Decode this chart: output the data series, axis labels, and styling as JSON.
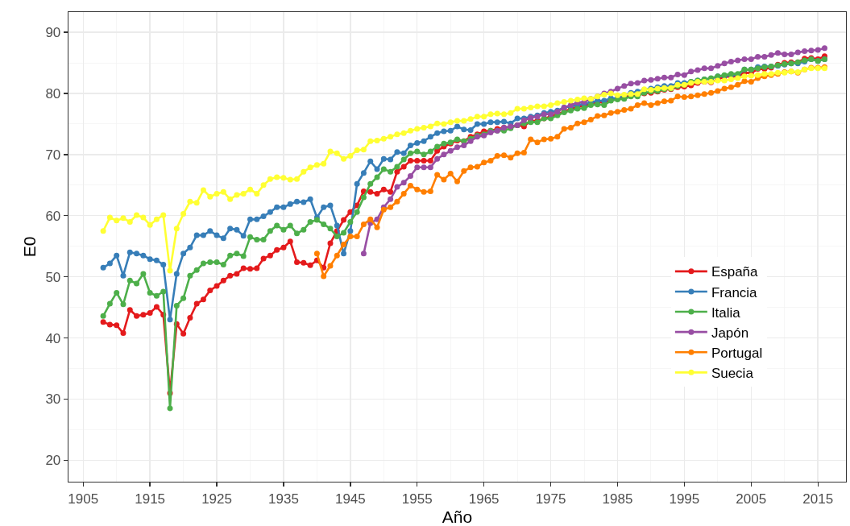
{
  "chart_data": {
    "type": "line",
    "xlabel": "Año",
    "ylabel": "E0",
    "grid": true,
    "legend": "right",
    "marker": "circle",
    "line_style": "solid",
    "xlim": [
      1902.8,
      2019.2
    ],
    "xticks": [
      1905,
      1915,
      1925,
      1935,
      1945,
      1955,
      1965,
      1975,
      1985,
      1995,
      2005,
      2015
    ],
    "ylim": [
      16.5,
      93.3
    ],
    "yticks": [
      20,
      30,
      40,
      50,
      60,
      70,
      80,
      90
    ],
    "x": [
      1908,
      1909,
      1910,
      1911,
      1912,
      1913,
      1914,
      1915,
      1916,
      1917,
      1918,
      1919,
      1920,
      1921,
      1922,
      1923,
      1924,
      1925,
      1926,
      1927,
      1928,
      1929,
      1930,
      1931,
      1932,
      1933,
      1934,
      1935,
      1936,
      1937,
      1938,
      1939,
      1940,
      1941,
      1942,
      1943,
      1944,
      1945,
      1946,
      1947,
      1948,
      1949,
      1950,
      1951,
      1952,
      1953,
      1954,
      1955,
      1956,
      1957,
      1958,
      1959,
      1960,
      1961,
      1962,
      1963,
      1964,
      1965,
      1966,
      1967,
      1968,
      1969,
      1970,
      1971,
      1972,
      1973,
      1974,
      1975,
      1976,
      1977,
      1978,
      1979,
      1980,
      1981,
      1982,
      1983,
      1984,
      1985,
      1986,
      1987,
      1988,
      1989,
      1990,
      1991,
      1992,
      1993,
      1994,
      1995,
      1996,
      1997,
      1998,
      1999,
      2000,
      2001,
      2002,
      2003,
      2004,
      2005,
      2006,
      2007,
      2008,
      2009,
      2010,
      2011,
      2012,
      2013,
      2014,
      2015,
      2016
    ],
    "series": [
      {
        "name": "España",
        "color": "#e41a1c",
        "values": [
          42.6,
          42.2,
          42.1,
          40.8,
          44.6,
          43.6,
          43.8,
          44.1,
          45.1,
          43.8,
          31.0,
          42.3,
          40.7,
          43.3,
          45.6,
          46.3,
          47.8,
          48.5,
          49.4,
          50.2,
          50.5,
          51.4,
          51.3,
          51.4,
          53.0,
          53.5,
          54.4,
          54.8,
          55.8,
          52.4,
          52.3,
          51.9,
          52.7,
          51.5,
          55.5,
          57.5,
          59.3,
          60.6,
          61.7,
          64.0,
          63.9,
          63.6,
          64.3,
          63.9,
          67.2,
          68.0,
          69.0,
          69.0,
          69.0,
          69.0,
          70.6,
          71.3,
          71.8,
          72.3,
          72.2,
          72.9,
          73.3,
          73.8,
          73.9,
          74.2,
          74.4,
          74.5,
          74.8,
          74.6,
          75.5,
          75.5,
          75.9,
          76.2,
          76.6,
          77.0,
          77.5,
          77.8,
          78.0,
          78.3,
          78.6,
          78.5,
          78.9,
          79.2,
          79.5,
          79.7,
          79.8,
          80.0,
          80.1,
          80.3,
          80.6,
          80.7,
          81.0,
          81.1,
          81.3,
          81.7,
          81.9,
          81.8,
          82.3,
          82.7,
          82.8,
          82.7,
          83.4,
          83.3,
          84.0,
          84.0,
          84.2,
          84.7,
          85.0,
          85.1,
          85.1,
          85.7,
          85.8,
          85.6,
          86.1
        ]
      },
      {
        "name": "Francia",
        "color": "#377eb8",
        "values": [
          51.5,
          52.2,
          53.5,
          50.2,
          54.0,
          53.8,
          53.5,
          52.9,
          52.7,
          52.0,
          43.0,
          50.5,
          53.8,
          54.8,
          56.8,
          56.8,
          57.5,
          56.8,
          56.3,
          57.9,
          57.7,
          56.7,
          59.4,
          59.4,
          59.9,
          60.6,
          61.4,
          61.4,
          61.9,
          62.3,
          62.2,
          62.7,
          59.7,
          61.4,
          61.7,
          58.4,
          53.8,
          57.5,
          65.2,
          67.0,
          68.9,
          67.6,
          69.3,
          69.2,
          70.4,
          70.2,
          71.5,
          71.9,
          72.2,
          72.9,
          73.5,
          73.8,
          73.9,
          74.6,
          74.1,
          74.0,
          75.0,
          75.0,
          75.3,
          75.3,
          75.4,
          75.1,
          75.9,
          75.9,
          76.2,
          76.4,
          76.8,
          77.0,
          77.2,
          77.7,
          77.9,
          78.1,
          78.3,
          78.5,
          78.8,
          78.8,
          79.2,
          79.2,
          79.7,
          80.1,
          80.3,
          80.6,
          80.8,
          81.0,
          81.2,
          81.2,
          81.7,
          81.7,
          81.9,
          82.1,
          82.3,
          82.4,
          82.8,
          82.9,
          83.0,
          83.0,
          83.9,
          83.9,
          84.3,
          84.4,
          84.4,
          84.5,
          84.7,
          84.9,
          84.9,
          85.2,
          85.6,
          85.3,
          85.6
        ]
      },
      {
        "name": "Italia",
        "color": "#4daf4a",
        "values": [
          43.6,
          45.6,
          47.4,
          45.5,
          49.4,
          48.9,
          50.5,
          47.4,
          46.9,
          47.6,
          28.5,
          45.3,
          46.5,
          50.2,
          51.1,
          52.2,
          52.4,
          52.4,
          52.0,
          53.5,
          53.8,
          53.4,
          56.5,
          56.1,
          56.1,
          57.5,
          58.4,
          57.7,
          58.4,
          57.1,
          57.7,
          59.0,
          59.3,
          58.6,
          57.9,
          56.6,
          57.2,
          59.0,
          60.6,
          63.0,
          65.2,
          66.3,
          67.6,
          67.2,
          68.0,
          69.2,
          70.2,
          70.5,
          70.0,
          70.5,
          71.3,
          71.8,
          72.0,
          72.5,
          72.2,
          72.6,
          73.1,
          73.3,
          73.9,
          73.9,
          73.9,
          74.3,
          74.8,
          75.1,
          75.3,
          75.3,
          75.9,
          75.9,
          76.4,
          76.9,
          77.2,
          77.5,
          77.6,
          78.1,
          78.2,
          78.1,
          78.8,
          79.0,
          79.1,
          79.5,
          79.5,
          80.1,
          80.3,
          80.4,
          80.7,
          80.8,
          81.2,
          81.4,
          81.9,
          82.1,
          82.3,
          82.5,
          82.8,
          83.0,
          83.2,
          83.2,
          83.9,
          83.9,
          84.1,
          84.3,
          84.4,
          84.6,
          84.8,
          84.9,
          85.1,
          85.4,
          85.6,
          85.3,
          85.6
        ]
      },
      {
        "name": "Japón",
        "color": "#984ea3",
        "values": [
          null,
          null,
          null,
          null,
          null,
          null,
          null,
          null,
          null,
          null,
          null,
          null,
          null,
          null,
          null,
          null,
          null,
          null,
          null,
          null,
          null,
          null,
          null,
          null,
          null,
          null,
          null,
          null,
          null,
          null,
          null,
          null,
          null,
          null,
          null,
          null,
          null,
          null,
          null,
          53.8,
          58.8,
          59.4,
          61.4,
          62.7,
          64.7,
          65.4,
          66.5,
          67.9,
          67.9,
          67.9,
          69.3,
          70.0,
          70.6,
          71.2,
          71.5,
          72.2,
          72.9,
          73.1,
          73.6,
          73.9,
          74.4,
          74.6,
          74.8,
          75.6,
          76.0,
          76.2,
          76.6,
          76.6,
          77.0,
          77.7,
          78.1,
          78.5,
          78.6,
          79.1,
          79.5,
          80.0,
          80.3,
          80.8,
          81.2,
          81.6,
          81.7,
          82.1,
          82.2,
          82.4,
          82.6,
          82.6,
          83.1,
          83.0,
          83.6,
          83.8,
          84.1,
          84.1,
          84.5,
          84.9,
          85.2,
          85.4,
          85.6,
          85.6,
          86.0,
          86.0,
          86.3,
          86.6,
          86.4,
          86.4,
          86.7,
          86.9,
          87.0,
          87.1,
          87.4
        ]
      },
      {
        "name": "Portugal",
        "color": "#ff7f00",
        "values": [
          null,
          null,
          null,
          null,
          null,
          null,
          null,
          null,
          null,
          null,
          null,
          null,
          null,
          null,
          null,
          null,
          null,
          null,
          null,
          null,
          null,
          null,
          null,
          null,
          null,
          null,
          null,
          null,
          null,
          null,
          null,
          null,
          53.8,
          50.1,
          51.8,
          53.5,
          55.3,
          56.6,
          56.6,
          58.6,
          59.4,
          58.1,
          61.0,
          61.4,
          62.3,
          63.6,
          64.9,
          64.3,
          63.9,
          64.0,
          66.7,
          65.9,
          66.9,
          65.6,
          67.3,
          67.9,
          68.0,
          68.7,
          69.0,
          69.8,
          69.9,
          69.5,
          70.2,
          70.3,
          72.5,
          72.0,
          72.5,
          72.6,
          72.9,
          74.2,
          74.4,
          75.1,
          75.3,
          75.7,
          76.3,
          76.4,
          76.8,
          77.0,
          77.3,
          77.5,
          78.1,
          78.4,
          78.1,
          78.4,
          78.7,
          78.8,
          79.5,
          79.4,
          79.5,
          79.7,
          79.9,
          80.1,
          80.4,
          80.8,
          81.0,
          81.4,
          82.0,
          81.9,
          82.5,
          82.8,
          83.0,
          83.2,
          83.5,
          83.6,
          83.4,
          83.9,
          84.2,
          84.2,
          84.3
        ]
      },
      {
        "name": "Suecia",
        "color": "#ffff33",
        "values": [
          57.5,
          59.7,
          59.2,
          59.6,
          59.0,
          60.1,
          59.7,
          58.5,
          59.4,
          60.1,
          51.0,
          57.9,
          60.3,
          62.3,
          62.1,
          64.2,
          63.1,
          63.6,
          63.9,
          62.7,
          63.4,
          63.6,
          64.3,
          63.6,
          65.0,
          66.0,
          66.3,
          66.2,
          65.9,
          66.0,
          67.2,
          67.9,
          68.3,
          68.5,
          70.5,
          70.2,
          69.3,
          69.8,
          70.7,
          70.8,
          72.2,
          72.3,
          72.6,
          72.9,
          73.3,
          73.5,
          73.9,
          74.2,
          74.4,
          74.6,
          75.1,
          75.0,
          75.3,
          75.5,
          75.5,
          75.8,
          76.2,
          76.2,
          76.6,
          76.7,
          76.6,
          76.8,
          77.5,
          77.5,
          77.7,
          77.9,
          77.9,
          78.1,
          78.4,
          78.6,
          78.8,
          79.0,
          79.2,
          79.1,
          79.5,
          79.8,
          80.0,
          79.7,
          79.8,
          79.9,
          79.9,
          80.7,
          80.6,
          80.8,
          80.9,
          80.9,
          81.4,
          81.4,
          81.7,
          81.9,
          81.9,
          81.9,
          82.1,
          82.1,
          82.3,
          82.5,
          82.8,
          82.9,
          83.0,
          83.2,
          83.2,
          83.4,
          83.4,
          83.6,
          83.5,
          83.9,
          84.1,
          84.1,
          84.1
        ]
      }
    ]
  }
}
